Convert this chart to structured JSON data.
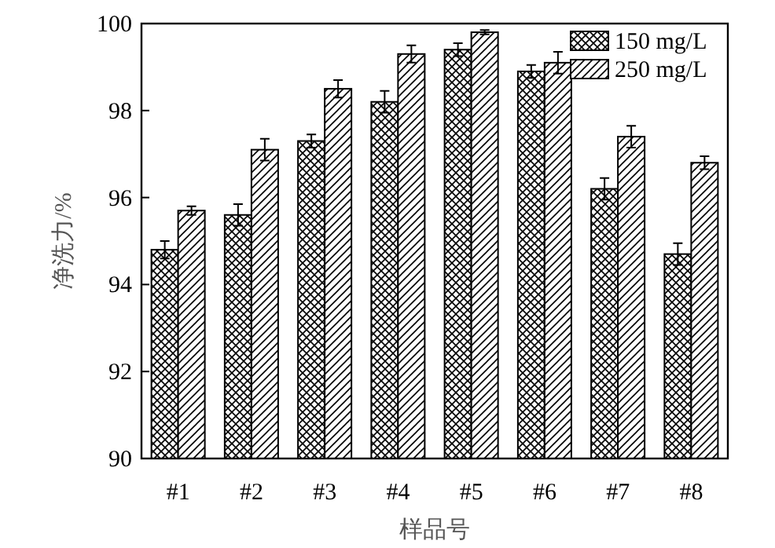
{
  "chart_data": {
    "type": "bar",
    "xlabel": "样品号",
    "ylabel": "净洗力/%",
    "categories": [
      "#1",
      "#2",
      "#3",
      "#4",
      "#5",
      "#6",
      "#7",
      "#8"
    ],
    "series": [
      {
        "name": "150 mg/L",
        "color": "#000000",
        "values": [
          94.8,
          95.6,
          97.3,
          98.2,
          99.4,
          98.9,
          96.2,
          94.7
        ],
        "errors": [
          0.2,
          0.25,
          0.15,
          0.25,
          0.15,
          0.15,
          0.25,
          0.25
        ]
      },
      {
        "name": "250 mg/L",
        "color": "#000000",
        "values": [
          95.7,
          97.1,
          98.5,
          99.3,
          99.8,
          99.1,
          97.4,
          96.8
        ],
        "errors": [
          0.1,
          0.25,
          0.2,
          0.2,
          0.05,
          0.25,
          0.25,
          0.15
        ]
      }
    ],
    "ylim": [
      90,
      100
    ],
    "yticks": [
      90,
      92,
      94,
      96,
      98,
      100
    ],
    "legend": "top right",
    "grid": false
  }
}
